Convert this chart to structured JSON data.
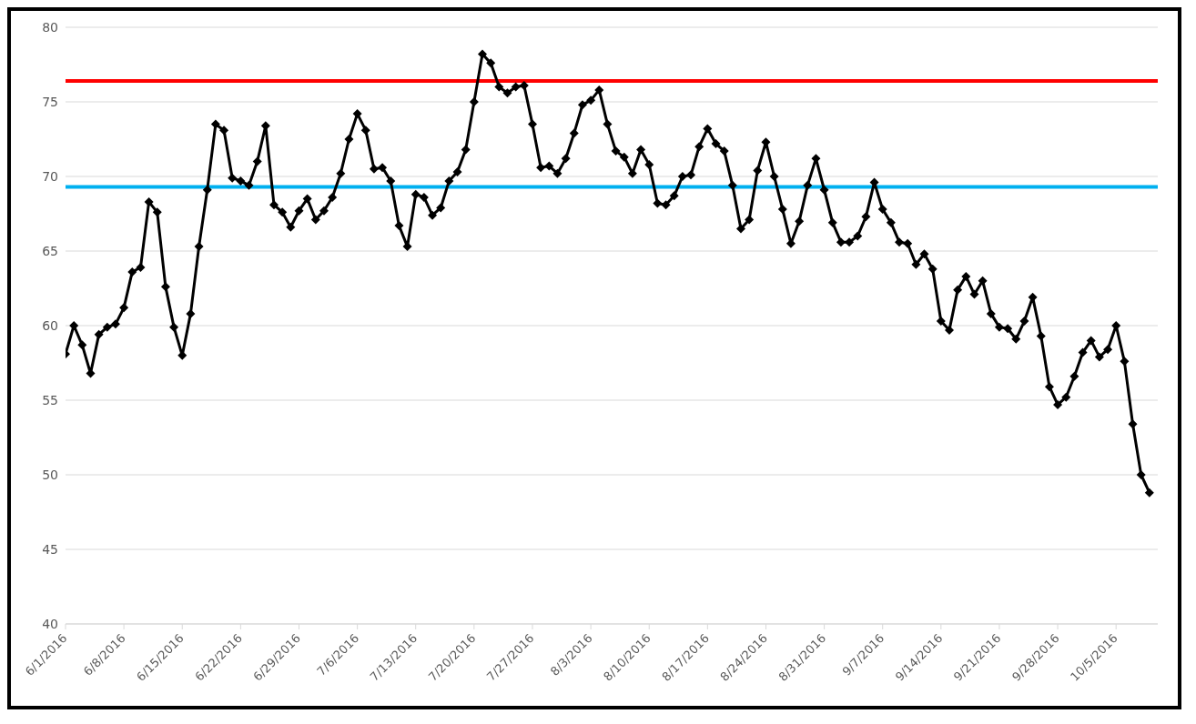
{
  "chart_data": {
    "type": "line",
    "x": [
      "2016-06-01",
      "2016-06-02",
      "2016-06-03",
      "2016-06-04",
      "2016-06-05",
      "2016-06-06",
      "2016-06-07",
      "2016-06-08",
      "2016-06-09",
      "2016-06-10",
      "2016-06-11",
      "2016-06-12",
      "2016-06-13",
      "2016-06-14",
      "2016-06-15",
      "2016-06-16",
      "2016-06-17",
      "2016-06-18",
      "2016-06-19",
      "2016-06-20",
      "2016-06-21",
      "2016-06-22",
      "2016-06-23",
      "2016-06-24",
      "2016-06-25",
      "2016-06-26",
      "2016-06-27",
      "2016-06-28",
      "2016-06-29",
      "2016-06-30",
      "2016-07-01",
      "2016-07-02",
      "2016-07-03",
      "2016-07-04",
      "2016-07-05",
      "2016-07-06",
      "2016-07-07",
      "2016-07-08",
      "2016-07-09",
      "2016-07-10",
      "2016-07-11",
      "2016-07-12",
      "2016-07-13",
      "2016-07-14",
      "2016-07-15",
      "2016-07-16",
      "2016-07-17",
      "2016-07-18",
      "2016-07-19",
      "2016-07-20",
      "2016-07-21",
      "2016-07-22",
      "2016-07-23",
      "2016-07-24",
      "2016-07-25",
      "2016-07-26",
      "2016-07-27",
      "2016-07-28",
      "2016-07-29",
      "2016-07-30",
      "2016-07-31",
      "2016-08-01",
      "2016-08-02",
      "2016-08-03",
      "2016-08-04",
      "2016-08-05",
      "2016-08-06",
      "2016-08-07",
      "2016-08-08",
      "2016-08-09",
      "2016-08-10",
      "2016-08-11",
      "2016-08-12",
      "2016-08-13",
      "2016-08-14",
      "2016-08-15",
      "2016-08-16",
      "2016-08-17",
      "2016-08-18",
      "2016-08-19",
      "2016-08-20",
      "2016-08-21",
      "2016-08-22",
      "2016-08-23",
      "2016-08-24",
      "2016-08-25",
      "2016-08-26",
      "2016-08-27",
      "2016-08-28",
      "2016-08-29",
      "2016-08-30",
      "2016-08-31",
      "2016-09-01",
      "2016-09-02",
      "2016-09-03",
      "2016-09-04",
      "2016-09-05",
      "2016-09-06",
      "2016-09-07",
      "2016-09-08",
      "2016-09-09",
      "2016-09-10",
      "2016-09-11",
      "2016-09-12",
      "2016-09-13",
      "2016-09-14",
      "2016-09-15",
      "2016-09-16",
      "2016-09-17",
      "2016-09-18",
      "2016-09-19",
      "2016-09-20",
      "2016-09-21",
      "2016-09-22",
      "2016-09-23",
      "2016-09-24",
      "2016-09-25",
      "2016-09-26",
      "2016-09-27",
      "2016-09-28",
      "2016-09-29",
      "2016-09-30",
      "2016-10-01",
      "2016-10-02",
      "2016-10-03",
      "2016-10-04",
      "2016-10-05",
      "2016-10-06",
      "2016-10-07",
      "2016-10-08",
      "2016-10-09"
    ],
    "series": [
      {
        "color": "#000000",
        "values": [
          58.1,
          60.0,
          58.7,
          56.8,
          59.4,
          59.9,
          60.1,
          61.2,
          63.6,
          63.9,
          68.3,
          67.6,
          62.6,
          59.9,
          58.0,
          60.8,
          65.3,
          69.1,
          73.5,
          73.1,
          69.9,
          69.7,
          69.4,
          71.0,
          73.4,
          68.1,
          67.6,
          66.6,
          67.7,
          68.5,
          67.1,
          67.7,
          68.6,
          70.2,
          72.5,
          74.2,
          73.1,
          70.5,
          70.6,
          69.7,
          66.7,
          65.3,
          68.8,
          68.6,
          67.4,
          67.9,
          69.7,
          70.3,
          71.8,
          75.0,
          78.2,
          77.6,
          76.0,
          75.6,
          76.0,
          76.1,
          73.5,
          70.6,
          70.7,
          70.2,
          71.2,
          72.9,
          74.8,
          75.1,
          75.8,
          73.5,
          71.7,
          71.3,
          70.2,
          71.8,
          70.8,
          68.2,
          68.1,
          68.7,
          70.0,
          70.1,
          72.0,
          73.2,
          72.2,
          71.7,
          69.4,
          66.5,
          67.1,
          70.4,
          72.3,
          70.0,
          67.8,
          65.5,
          67.0,
          69.4,
          71.2,
          69.1,
          66.9,
          65.6,
          65.6,
          66.0,
          67.3,
          69.6,
          67.8,
          66.9,
          65.6,
          65.5,
          64.1,
          64.8,
          63.8,
          60.3,
          59.7,
          62.4,
          63.3,
          62.1,
          63.0,
          60.8,
          59.9,
          59.8,
          59.1,
          60.3,
          61.9,
          59.3,
          55.9,
          54.7,
          55.2,
          56.6,
          58.2,
          59.0,
          57.9,
          58.4,
          60.0,
          57.6,
          53.4,
          50.0,
          48.8
        ]
      }
    ],
    "xlim": [
      "2016-06-01",
      "2016-10-10"
    ],
    "xticks": [
      {
        "value": "2016-06-01",
        "label": "6/1/2016"
      },
      {
        "value": "2016-06-08",
        "label": "6/8/2016"
      },
      {
        "value": "2016-06-15",
        "label": "6/15/2016"
      },
      {
        "value": "2016-06-22",
        "label": "6/22/2016"
      },
      {
        "value": "2016-06-29",
        "label": "6/29/2016"
      },
      {
        "value": "2016-07-06",
        "label": "7/6/2016"
      },
      {
        "value": "2016-07-13",
        "label": "7/13/2016"
      },
      {
        "value": "2016-07-20",
        "label": "7/20/2016"
      },
      {
        "value": "2016-07-27",
        "label": "7/27/2016"
      },
      {
        "value": "2016-08-03",
        "label": "8/3/2016"
      },
      {
        "value": "2016-08-10",
        "label": "8/10/2016"
      },
      {
        "value": "2016-08-17",
        "label": "8/17/2016"
      },
      {
        "value": "2016-08-24",
        "label": "8/24/2016"
      },
      {
        "value": "2016-08-31",
        "label": "8/31/2016"
      },
      {
        "value": "2016-09-07",
        "label": "9/7/2016"
      },
      {
        "value": "2016-09-14",
        "label": "9/14/2016"
      },
      {
        "value": "2016-09-21",
        "label": "9/21/2016"
      },
      {
        "value": "2016-09-28",
        "label": "9/28/2016"
      },
      {
        "value": "2016-10-05",
        "label": "10/5/2016"
      }
    ],
    "ylim": [
      40,
      80
    ],
    "yticks": [
      40,
      45,
      50,
      55,
      60,
      65,
      70,
      75,
      80
    ],
    "ref_lines": [
      {
        "axis": "y",
        "value": 76.4,
        "color": "#ff0000"
      },
      {
        "axis": "y",
        "value": 69.3,
        "color": "#00b0f0"
      }
    ],
    "grid": "y",
    "marker": "diamond",
    "line_style": "solid",
    "legend": false
  }
}
